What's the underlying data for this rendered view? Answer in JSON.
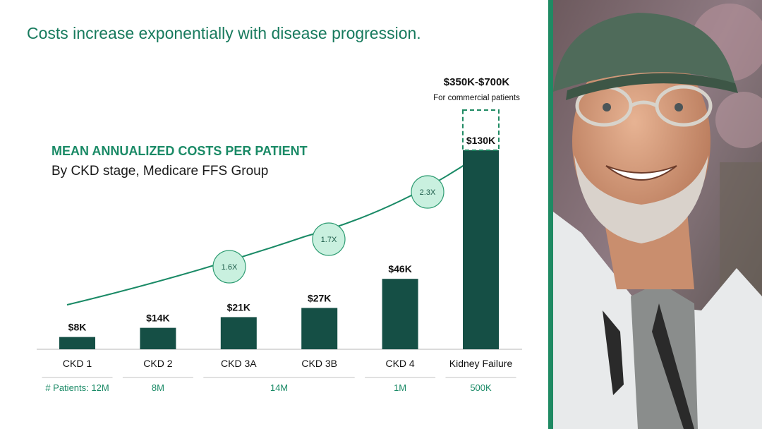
{
  "slide": {
    "title": "Costs increase exponentially with disease progression."
  },
  "chart_data": {
    "type": "bar",
    "title": "MEAN ANNUALIZED COSTS PER PATIENT",
    "subtitle": "By CKD stage, Medicare FFS Group",
    "categories": [
      "CKD 1",
      "CKD 2",
      "CKD 3A",
      "CKD 3B",
      "CKD 4",
      "Kidney Failure"
    ],
    "values": [
      8,
      14,
      21,
      27,
      46,
      130
    ],
    "value_labels": [
      "$8K",
      "$14K",
      "$21K",
      "$27K",
      "$46K",
      "$130K"
    ],
    "unit": "$K",
    "bar_color": "#154f45",
    "commercial_range": {
      "label": "$350K-$700K",
      "note": "For commercial patients"
    },
    "multipliers": [
      "1.6X",
      "1.7X",
      "2.3X"
    ],
    "patient_counts": {
      "label_prefix": "# Patients:",
      "groups": [
        {
          "text": "12M",
          "categories": [
            "CKD 1"
          ]
        },
        {
          "text": "8M",
          "categories": [
            "CKD 2"
          ]
        },
        {
          "text": "14M",
          "categories": [
            "CKD 3A",
            "CKD 3B"
          ]
        },
        {
          "text": "1M",
          "categories": [
            "CKD 4"
          ]
        },
        {
          "text": "500K",
          "categories": [
            "Kidney Failure"
          ]
        }
      ]
    },
    "colors": {
      "accent": "#1a8a66",
      "bubble_fill": "#c9f0df",
      "bubble_stroke": "#2e9c72"
    }
  }
}
